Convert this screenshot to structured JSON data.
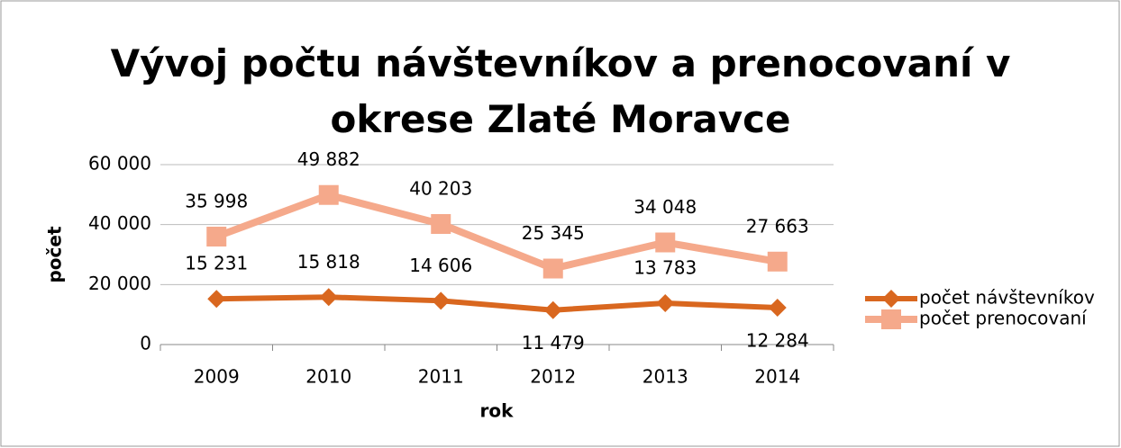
{
  "chart_data": {
    "type": "line",
    "title": "Vývoj počtu návštevníkov a prenocovaní v okrese Zlaté Moravce",
    "x_label": "rok",
    "y_label": "počet",
    "categories": [
      "2009",
      "2010",
      "2011",
      "2012",
      "2013",
      "2014"
    ],
    "series": [
      {
        "name": "počet návštevníkov",
        "color": "#d9671f",
        "marker": "diamond",
        "values": [
          15231,
          15818,
          14606,
          11479,
          13783,
          12284
        ],
        "value_labels": [
          "15 231",
          "15 818",
          "14 606",
          "11 479",
          "13 783",
          "12 284"
        ]
      },
      {
        "name": "počet prenocovaní",
        "color": "#f5a98b",
        "marker": "square",
        "values": [
          35998,
          49882,
          40203,
          25345,
          34048,
          27663
        ],
        "value_labels": [
          "35 998",
          "49 882",
          "40 203",
          "25 345",
          "34 048",
          "27 663"
        ]
      }
    ],
    "ylim": [
      0,
      60000
    ],
    "yticks": [
      0,
      {
        "value": 20000,
        "label": "20 000"
      },
      {
        "value": 40000,
        "label": "40 000"
      },
      {
        "value": 60000,
        "label": "60 000"
      }
    ],
    "grid": true,
    "legend": "right"
  }
}
